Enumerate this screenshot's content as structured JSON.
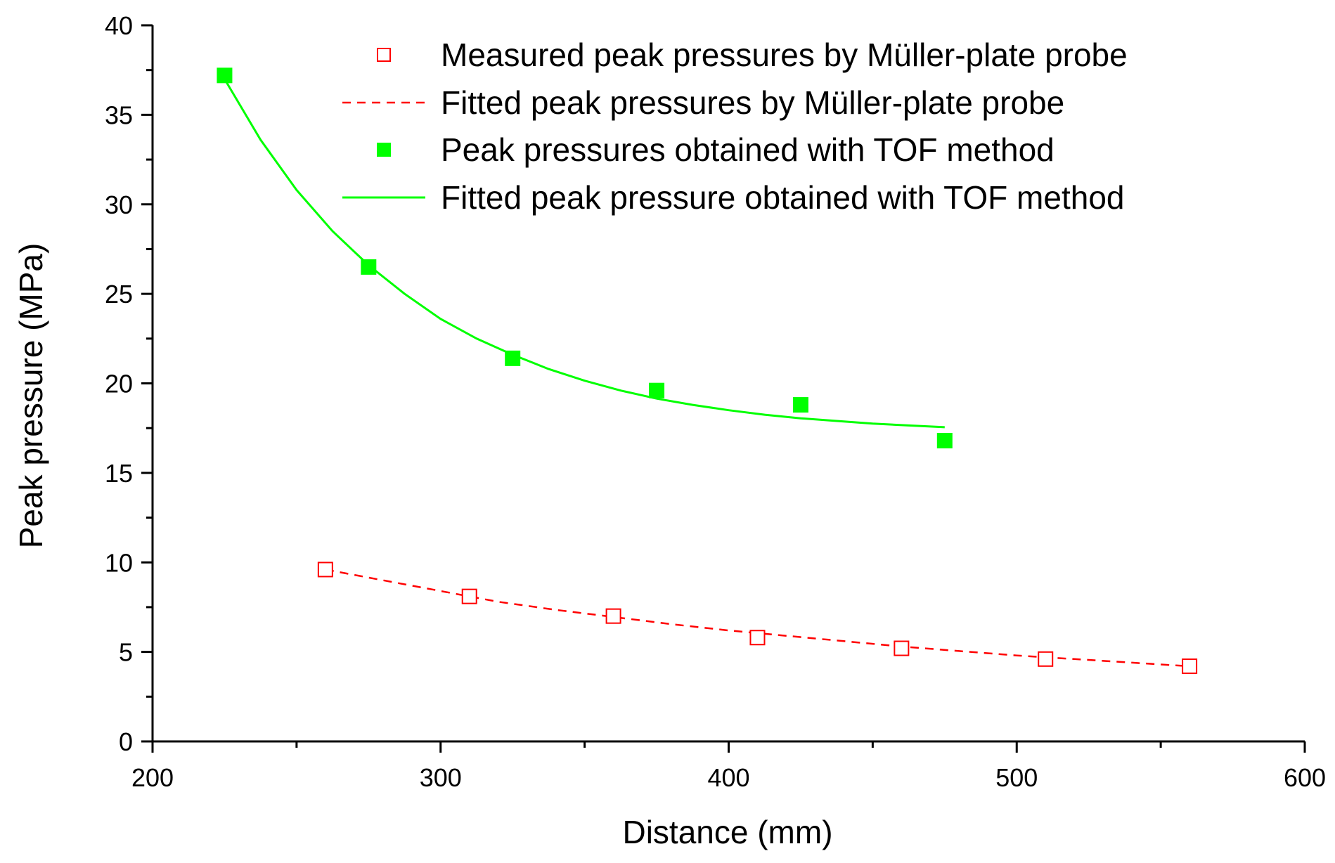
{
  "chart_data": {
    "type": "scatter",
    "title": "",
    "xlabel": "Distance (mm)",
    "ylabel": "Peak pressure (MPa)",
    "xlim": [
      200,
      600
    ],
    "ylim": [
      0,
      40
    ],
    "x_ticks": [
      200,
      300,
      400,
      500,
      600
    ],
    "y_ticks": [
      0,
      5,
      10,
      15,
      20,
      25,
      30,
      35,
      40
    ],
    "grid": false,
    "legend_position": "top-right",
    "series": [
      {
        "name": "Measured peak pressures by Müller-plate probe",
        "kind": "markers",
        "marker": "open-square",
        "color": "#ff0000",
        "x": [
          260,
          310,
          360,
          410,
          460,
          510,
          560
        ],
        "y": [
          9.6,
          8.1,
          7.0,
          5.8,
          5.2,
          4.6,
          4.2
        ]
      },
      {
        "name": "Fitted peak pressures by Müller-plate probe",
        "kind": "line",
        "dash": "dashed",
        "color": "#ff0000",
        "x": [
          260,
          280,
          300,
          320,
          340,
          360,
          380,
          400,
          420,
          440,
          460,
          480,
          500,
          520,
          540,
          560
        ],
        "y": [
          9.6,
          9.0,
          8.4,
          7.8,
          7.35,
          6.95,
          6.55,
          6.2,
          5.9,
          5.6,
          5.3,
          5.05,
          4.8,
          4.6,
          4.4,
          4.2
        ]
      },
      {
        "name": "Peak pressures obtained with TOF method",
        "kind": "markers",
        "marker": "filled-square",
        "color": "#00ff00",
        "x": [
          225,
          275,
          325,
          375,
          425,
          475
        ],
        "y": [
          37.2,
          26.5,
          21.4,
          19.6,
          18.8,
          16.8
        ]
      },
      {
        "name": "Fitted peak pressure obtained with TOF method",
        "kind": "line",
        "dash": "solid",
        "color": "#00ff00",
        "x": [
          225,
          237.5,
          250,
          262.5,
          275,
          287.5,
          300,
          312.5,
          325,
          337.5,
          350,
          362.5,
          375,
          387.5,
          400,
          412.5,
          425,
          437.5,
          450,
          462.5,
          475
        ],
        "y": [
          37.0,
          33.6,
          30.8,
          28.5,
          26.6,
          25.0,
          23.6,
          22.5,
          21.6,
          20.8,
          20.15,
          19.6,
          19.15,
          18.8,
          18.5,
          18.25,
          18.05,
          17.9,
          17.75,
          17.65,
          17.55
        ]
      }
    ]
  }
}
